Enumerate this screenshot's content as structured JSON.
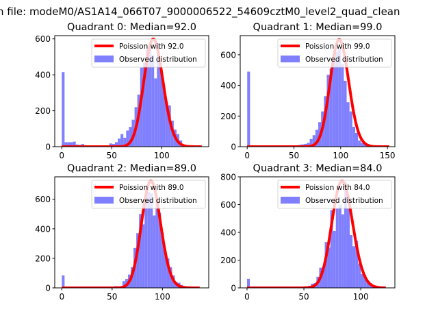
{
  "figure": {
    "suptitle": "n file: modeM0/AS1A14_066T07_9000006522_54609cztM0_level2_quad_clean"
  },
  "colors": {
    "bars": "#8080ff",
    "poisson": "#ff0000"
  },
  "chart_data": [
    {
      "type": "bar",
      "title": "Quadrant 0: Median=92.0",
      "legend": [
        "Poission with 92.0",
        "Observed distribution"
      ],
      "legend_position": "top-right",
      "xlim": [
        -7,
        147
      ],
      "ylim": [
        0,
        618
      ],
      "xticks": [
        0,
        50,
        100
      ],
      "yticks": [
        0,
        200,
        400,
        600
      ],
      "bin_start": 0,
      "bin_width": 2.8,
      "counts": [
        415,
        25,
        25,
        25,
        28,
        12,
        10,
        15,
        8,
        5,
        5,
        5,
        5,
        5,
        5,
        5,
        5,
        18,
        15,
        25,
        45,
        70,
        50,
        90,
        110,
        150,
        220,
        290,
        440,
        470,
        540,
        560,
        510,
        380,
        575,
        430,
        335,
        245,
        230,
        145,
        95,
        70,
        35,
        5,
        3,
        2,
        1,
        1,
        0,
        1
      ],
      "poisson_lambda": 92.0,
      "poisson_scale": 14420,
      "poisson_xmax": 140
    },
    {
      "type": "bar",
      "title": "Quadrant 1: Median=99.0",
      "legend": [
        "Poission with 99.0",
        "Observed distribution"
      ],
      "legend_position": "top-right",
      "xlim": [
        -7.5,
        158
      ],
      "ylim": [
        0,
        725
      ],
      "xticks": [
        0,
        50,
        100,
        150
      ],
      "yticks": [
        0,
        200,
        400,
        600
      ],
      "bin_start": 0,
      "bin_width": 3.04,
      "counts": [
        490,
        0,
        0,
        0,
        0,
        0,
        0,
        0,
        0,
        0,
        0,
        0,
        0,
        0,
        0,
        0,
        0,
        0,
        12,
        15,
        18,
        25,
        50,
        75,
        110,
        160,
        230,
        330,
        470,
        510,
        560,
        620,
        640,
        540,
        430,
        290,
        230,
        130,
        90,
        40,
        25,
        15,
        10,
        5,
        3,
        2,
        1,
        1,
        0,
        1
      ],
      "poisson_lambda": 99.0,
      "poisson_scale": 17460,
      "poisson_xmax": 152
    },
    {
      "type": "bar",
      "title": "Quadrant 2: Median=89.0",
      "legend": [
        "Poission with 89.0",
        "Observed distribution"
      ],
      "legend_position": "top-right",
      "xlim": [
        -7,
        146
      ],
      "ylim": [
        0,
        752
      ],
      "xticks": [
        0,
        50,
        100
      ],
      "yticks": [
        0,
        200,
        400,
        600
      ],
      "bin_start": 0,
      "bin_width": 2.74,
      "counts": [
        85,
        0,
        0,
        0,
        0,
        0,
        0,
        0,
        0,
        0,
        0,
        0,
        0,
        0,
        0,
        0,
        0,
        0,
        0,
        12,
        10,
        10,
        45,
        60,
        90,
        140,
        270,
        370,
        500,
        430,
        600,
        650,
        640,
        490,
        580,
        510,
        370,
        250,
        200,
        140,
        85,
        40,
        35,
        20,
        8,
        4,
        2,
        1,
        1,
        0
      ],
      "poisson_lambda": 89.0,
      "poisson_scale": 17140,
      "poisson_xmax": 137
    },
    {
      "type": "bar",
      "title": "Quadrant 3: Median=84.0",
      "legend": [
        "Poission with 84.0",
        "Observed distribution"
      ],
      "legend_position": "top-right",
      "xlim": [
        -6,
        130
      ],
      "ylim": [
        0,
        800
      ],
      "xticks": [
        0,
        50,
        100
      ],
      "yticks": [
        0,
        200,
        400,
        600,
        800
      ],
      "bin_start": 0,
      "bin_width": 2.44,
      "counts": [
        65,
        0,
        0,
        0,
        0,
        0,
        0,
        0,
        0,
        0,
        0,
        0,
        0,
        0,
        0,
        0,
        0,
        0,
        0,
        8,
        10,
        12,
        15,
        30,
        35,
        80,
        145,
        150,
        330,
        290,
        560,
        410,
        570,
        600,
        530,
        760,
        570,
        380,
        300,
        340,
        175,
        100,
        95,
        45,
        35,
        20,
        10,
        5,
        3,
        2
      ],
      "poisson_lambda": 84.0,
      "poisson_scale": 17700,
      "poisson_xmax": 122
    }
  ]
}
